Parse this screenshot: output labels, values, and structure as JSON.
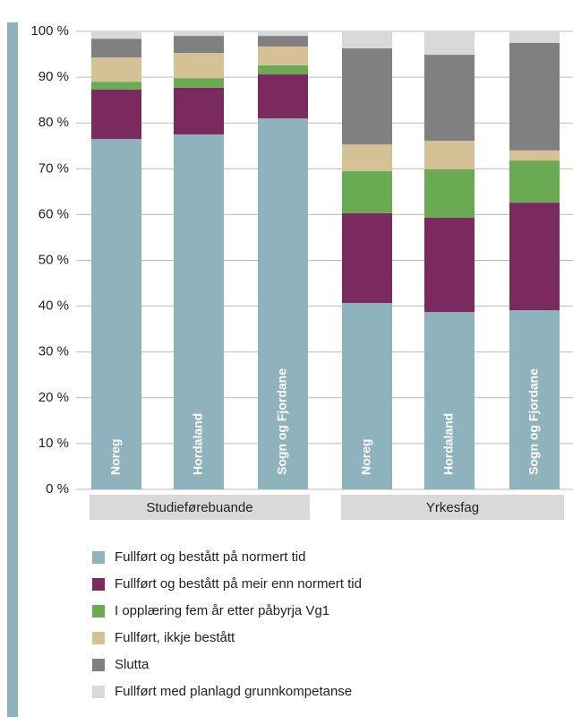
{
  "chart_data": {
    "type": "stacked_bar",
    "categories": [
      "Noreg",
      "Hordaland",
      "Sogn og Fjordane",
      "Noreg",
      "Hordaland",
      "Sogn og Fjordane"
    ],
    "groups": [
      "Studieførebuande",
      "Yrkesfag"
    ],
    "series": [
      {
        "name": "Fullført og bestått på normert tid",
        "color": "#8fb3bd",
        "values": [
          76.5,
          77.5,
          81.0,
          40.7,
          38.7,
          39.1
        ]
      },
      {
        "name": "Fullført og bestått på meir enn normert tid",
        "color": "#7a2a5e",
        "values": [
          10.8,
          10.2,
          9.6,
          19.6,
          20.6,
          23.5
        ]
      },
      {
        "name": "I opplæring fem år etter påbyrja Vg1",
        "color": "#6aaa52",
        "values": [
          1.7,
          2.1,
          2.0,
          9.2,
          10.6,
          9.2
        ]
      },
      {
        "name": "Fullført, ikkje bestått",
        "color": "#d4c196",
        "values": [
          5.3,
          5.5,
          4.1,
          5.8,
          6.2,
          2.2
        ]
      },
      {
        "name": "Slutta",
        "color": "#808080",
        "values": [
          4.1,
          3.7,
          2.3,
          21.0,
          18.8,
          23.5
        ]
      },
      {
        "name": "Fullført med planlagd grunnkompetanse",
        "color": "#d9d9d9",
        "values": [
          1.6,
          1.0,
          1.0,
          3.7,
          5.1,
          2.5
        ]
      }
    ],
    "ylim": [
      0,
      100
    ],
    "yticks": [
      {
        "value": 0,
        "label": "0 %"
      },
      {
        "value": 10,
        "label": "10 %"
      },
      {
        "value": 20,
        "label": "20 %"
      },
      {
        "value": 30,
        "label": "30 %"
      },
      {
        "value": 40,
        "label": "40 %"
      },
      {
        "value": 50,
        "label": "50 %"
      },
      {
        "value": 60,
        "label": "60 %"
      },
      {
        "value": 70,
        "label": "70 %"
      },
      {
        "value": 80,
        "label": "80 %"
      },
      {
        "value": 90,
        "label": "90 %"
      },
      {
        "value": 100,
        "label": "100 %"
      }
    ],
    "grid": true
  }
}
